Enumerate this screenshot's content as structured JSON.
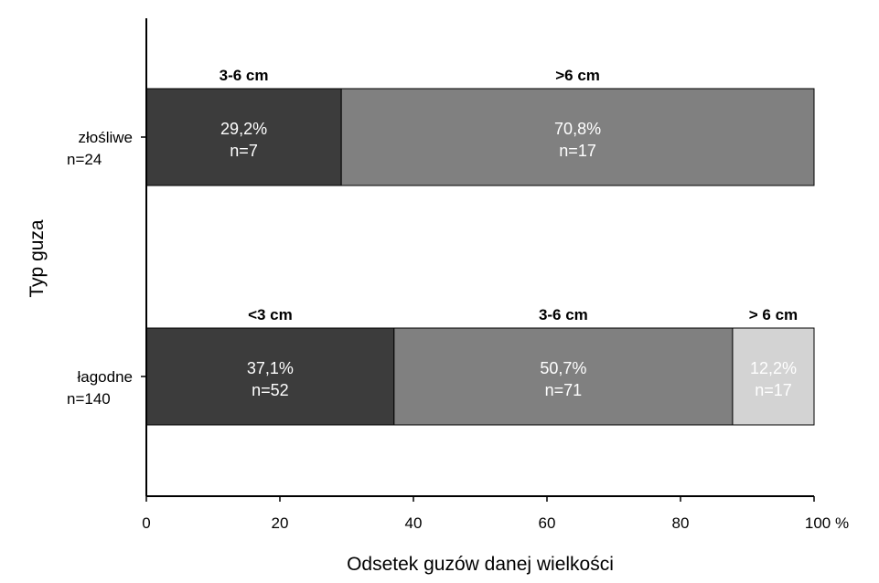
{
  "chart_data": {
    "type": "bar",
    "orientation": "horizontal",
    "stacked": true,
    "xlabel": "Odsetek guzów danej wielkości",
    "ylabel": "Typ guza",
    "xlim": [
      0,
      100
    ],
    "xticks": [
      "0",
      "20",
      "40",
      "60",
      "80",
      "100"
    ],
    "xunit": "%",
    "grid": false,
    "categories": [
      {
        "name": "złośliwe",
        "count": "n=24",
        "segments": [
          {
            "label": "3-6 cm",
            "value": 29.2,
            "pct_text": "29,2%",
            "n_text": "n=7",
            "color": "#3c3c3c",
            "text_color": "#ffffff"
          },
          {
            "label": ">6 cm",
            "value": 70.8,
            "pct_text": "70,8%",
            "n_text": "n=17",
            "color": "#808080",
            "text_color": "#ffffff"
          }
        ]
      },
      {
        "name": "łagodne",
        "count": "n=140",
        "segments": [
          {
            "label": "<3 cm",
            "value": 37.1,
            "pct_text": "37,1%",
            "n_text": "n=52",
            "color": "#3c3c3c",
            "text_color": "#ffffff"
          },
          {
            "label": "3-6 cm",
            "value": 50.7,
            "pct_text": "50,7%",
            "n_text": "n=71",
            "color": "#808080",
            "text_color": "#ffffff"
          },
          {
            "label": "> 6 cm",
            "value": 12.2,
            "pct_text": "12,2%",
            "n_text": "n=17",
            "color": "#d3d3d3",
            "text_color": "#ffffff"
          }
        ]
      }
    ]
  }
}
